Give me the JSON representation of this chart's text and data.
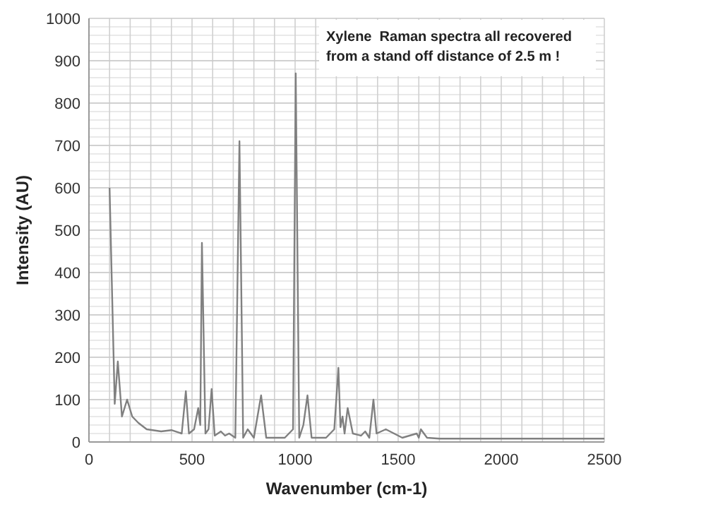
{
  "chart_data": {
    "type": "line",
    "xlabel": "Wavenumber (cm-1)",
    "ylabel": "Intensity (AU)",
    "annotations": [
      "Xylene  Raman spectra all recovered from a stand off distance of 2.5 m !"
    ],
    "xlim": [
      0,
      2500
    ],
    "ylim": [
      0,
      1000
    ],
    "xticks": [
      0,
      {
        "value": 100,
        "label": null
      },
      {
        "value": 200,
        "label": null
      },
      {
        "value": 300,
        "label": null
      },
      {
        "value": 400,
        "label": null
      },
      500,
      {
        "value": 600,
        "label": null
      },
      {
        "value": 700,
        "label": null
      },
      {
        "value": 800,
        "label": null
      },
      {
        "value": 900,
        "label": null
      },
      1000,
      {
        "value": 1100,
        "label": null
      },
      {
        "value": 1200,
        "label": null
      },
      {
        "value": 1300,
        "label": null
      },
      {
        "value": 1400,
        "label": null
      },
      1500,
      {
        "value": 1600,
        "label": null
      },
      {
        "value": 1700,
        "label": null
      },
      {
        "value": 1800,
        "label": null
      },
      {
        "value": 1900,
        "label": null
      },
      2000,
      {
        "value": 2100,
        "label": null
      },
      {
        "value": 2200,
        "label": null
      },
      {
        "value": 2300,
        "label": null
      },
      {
        "value": 2400,
        "label": null
      },
      2500
    ],
    "yticks": [
      0,
      100,
      200,
      300,
      400,
      500,
      600,
      700,
      800,
      900,
      1000
    ],
    "grid": true,
    "marker": "none",
    "line_style": "solid",
    "series": [
      {
        "color": "#808080",
        "x": [
          100,
          125,
          140,
          160,
          185,
          210,
          240,
          280,
          350,
          400,
          450,
          470,
          485,
          510,
          530,
          540,
          548,
          565,
          580,
          595,
          610,
          640,
          660,
          680,
          710,
          730,
          748,
          770,
          800,
          835,
          860,
          950,
          990,
          1003,
          1020,
          1040,
          1060,
          1080,
          1150,
          1190,
          1210,
          1220,
          1230,
          1240,
          1255,
          1280,
          1320,
          1340,
          1360,
          1380,
          1395,
          1440,
          1480,
          1520,
          1590,
          1600,
          1610,
          1640,
          1700,
          2500
        ],
        "values": [
          600,
          90,
          190,
          60,
          100,
          60,
          45,
          30,
          25,
          28,
          20,
          120,
          20,
          30,
          80,
          40,
          470,
          20,
          30,
          125,
          15,
          25,
          15,
          20,
          10,
          710,
          10,
          30,
          10,
          110,
          10,
          10,
          30,
          870,
          10,
          40,
          110,
          10,
          10,
          30,
          175,
          35,
          60,
          20,
          80,
          20,
          15,
          25,
          10,
          100,
          20,
          30,
          20,
          10,
          20,
          10,
          30,
          10,
          8,
          8
        ]
      }
    ]
  }
}
